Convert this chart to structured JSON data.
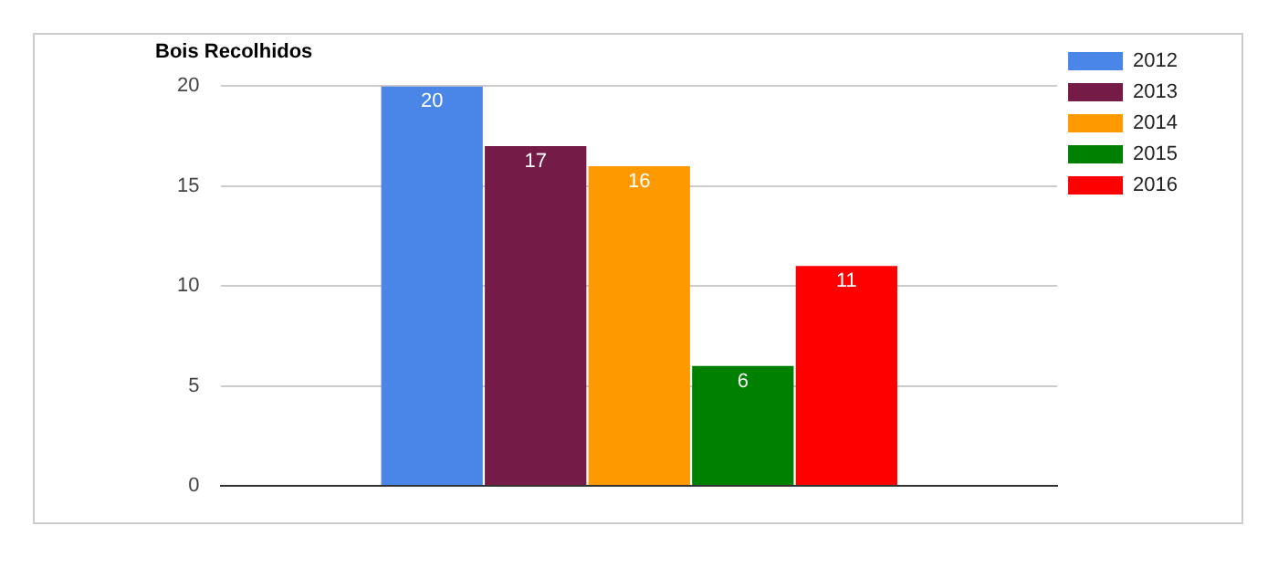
{
  "chart_data": {
    "type": "bar",
    "title": "Bois Recolhidos",
    "categories": [
      null
    ],
    "series": [
      {
        "name": "2012",
        "color": "#4a86e8",
        "values": [
          20
        ]
      },
      {
        "name": "2013",
        "color": "#741b47",
        "values": [
          17
        ]
      },
      {
        "name": "2014",
        "color": "#ff9900",
        "values": [
          16
        ]
      },
      {
        "name": "2015",
        "color": "#008000",
        "values": [
          6
        ]
      },
      {
        "name": "2016",
        "color": "#ff0000",
        "values": [
          11
        ]
      }
    ],
    "ylim": [
      0,
      20
    ],
    "yticks": [
      0,
      5,
      10,
      15,
      20
    ],
    "grid": "y",
    "legend": "right",
    "data_labels": true
  }
}
